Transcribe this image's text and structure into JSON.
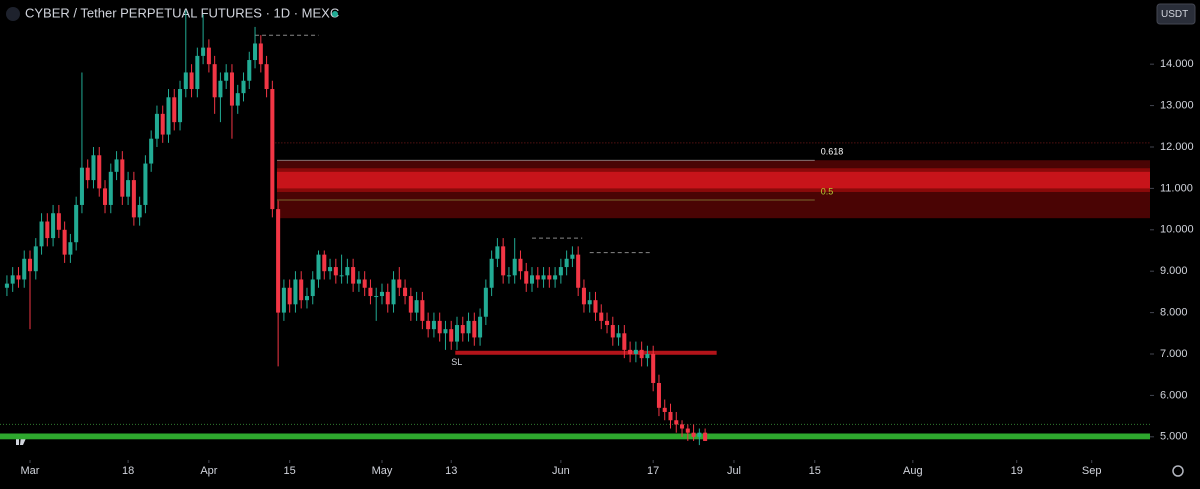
{
  "chart_data": {
    "type": "candlestick",
    "title": "CYBER / Tether PERPETUAL FUTURES · 1D · MEXC",
    "currency": "USDT",
    "up_color": "#22ab94",
    "down_color": "#f23645",
    "xlim": [
      -5.2,
      194.1
    ],
    "ylim": [
      4.44,
      15.55
    ],
    "xticks": [
      {
        "value": 0,
        "label": "Mar"
      },
      {
        "value": 17,
        "label": "18"
      },
      {
        "value": 31,
        "label": "Apr"
      },
      {
        "value": 45,
        "label": "15"
      },
      {
        "value": 61,
        "label": "May"
      },
      {
        "value": 73,
        "label": "13"
      },
      {
        "value": 92,
        "label": "Jun"
      },
      {
        "value": 108,
        "label": "17"
      },
      {
        "value": 122,
        "label": "Jul"
      },
      {
        "value": 136,
        "label": "15"
      },
      {
        "value": 153,
        "label": "Aug"
      },
      {
        "value": 171,
        "label": "19"
      },
      {
        "value": 184,
        "label": "Sep"
      }
    ],
    "yticks": [
      {
        "value": 5,
        "label": "5.000"
      },
      {
        "value": 6,
        "label": "6.000"
      },
      {
        "value": 7,
        "label": "7.000"
      },
      {
        "value": 8,
        "label": "8.000"
      },
      {
        "value": 9,
        "label": "9.000"
      },
      {
        "value": 10,
        "label": "10.000"
      },
      {
        "value": 11,
        "label": "11.000"
      },
      {
        "value": 12,
        "label": "12.000"
      },
      {
        "value": 13,
        "label": "13.000"
      },
      {
        "value": 14,
        "label": "14.000"
      }
    ],
    "x": [
      -4,
      -3,
      -2,
      -1,
      0,
      1,
      2,
      3,
      4,
      5,
      6,
      7,
      8,
      9,
      10,
      11,
      12,
      13,
      14,
      15,
      16,
      17,
      18,
      19,
      20,
      21,
      22,
      23,
      24,
      25,
      26,
      27,
      28,
      29,
      30,
      31,
      32,
      33,
      34,
      35,
      36,
      37,
      38,
      39,
      40,
      41,
      42,
      43,
      44,
      45,
      46,
      47,
      48,
      49,
      50,
      51,
      52,
      53,
      54,
      55,
      56,
      57,
      58,
      59,
      60,
      61,
      62,
      63,
      64,
      65,
      66,
      67,
      68,
      69,
      70,
      71,
      72,
      73,
      74,
      75,
      76,
      77,
      78,
      79,
      80,
      81,
      82,
      83,
      84,
      85,
      86,
      87,
      88,
      89,
      90,
      91,
      92,
      93,
      94,
      95,
      96,
      97,
      98,
      99,
      100,
      101,
      102,
      103,
      104,
      105,
      106,
      107,
      108,
      109,
      110,
      111,
      112,
      113,
      114,
      115,
      116,
      117
    ],
    "open": [
      8.6,
      8.7,
      8.9,
      8.8,
      9.3,
      9.0,
      9.6,
      10.2,
      9.8,
      10.4,
      10.0,
      9.4,
      9.7,
      10.6,
      11.5,
      11.2,
      11.8,
      11.0,
      10.6,
      11.4,
      11.7,
      10.8,
      11.2,
      10.3,
      10.6,
      11.6,
      12.2,
      12.8,
      12.3,
      13.2,
      12.6,
      13.4,
      13.8,
      13.4,
      14.2,
      14.4,
      14.0,
      13.2,
      13.6,
      13.8,
      13.0,
      13.3,
      13.6,
      14.1,
      14.5,
      14.0,
      13.4,
      10.5,
      8.0,
      8.6,
      8.2,
      8.8,
      8.3,
      8.4,
      8.8,
      9.4,
      9.0,
      9.1,
      8.9,
      8.9,
      9.1,
      8.7,
      8.8,
      8.6,
      8.4,
      8.4,
      8.5,
      8.2,
      8.8,
      8.6,
      8.4,
      8.0,
      8.3,
      7.8,
      7.6,
      7.8,
      7.5,
      7.6,
      7.3,
      7.7,
      7.5,
      7.8,
      7.4,
      7.9,
      8.6,
      9.3,
      9.6,
      8.9,
      8.9,
      9.3,
      9.0,
      8.7,
      8.9,
      8.8,
      8.9,
      8.8,
      8.9,
      9.1,
      9.3,
      9.4,
      8.6,
      8.2,
      8.3,
      8.0,
      7.8,
      7.7,
      7.4,
      7.5,
      7.1,
      7.0,
      7.1,
      6.9,
      7.0,
      6.3,
      5.7,
      5.6,
      5.4,
      5.3,
      5.2,
      5.1,
      5.0,
      5.1
    ],
    "high": [
      8.9,
      9.1,
      9.1,
      9.5,
      9.5,
      9.8,
      10.4,
      10.4,
      10.6,
      10.6,
      10.2,
      9.9,
      10.8,
      13.8,
      11.7,
      12.0,
      12.0,
      11.2,
      11.6,
      11.9,
      11.9,
      11.4,
      11.4,
      10.8,
      11.8,
      12.4,
      13.0,
      13.0,
      13.4,
      13.4,
      13.6,
      15.3,
      14.0,
      14.4,
      15.2,
      14.6,
      14.2,
      13.8,
      14.0,
      14.0,
      13.5,
      13.8,
      14.3,
      14.9,
      14.7,
      14.2,
      13.6,
      10.7,
      8.8,
      8.8,
      9.0,
      9.0,
      8.6,
      9.0,
      9.5,
      9.5,
      9.3,
      9.3,
      9.4,
      9.3,
      9.3,
      9.0,
      9.0,
      8.8,
      8.6,
      8.7,
      8.7,
      9.0,
      9.1,
      8.8,
      8.6,
      8.5,
      8.5,
      8.0,
      8.0,
      8.0,
      7.8,
      7.8,
      7.9,
      7.9,
      8.0,
      8.0,
      8.1,
      8.8,
      9.5,
      9.8,
      9.8,
      9.1,
      9.8,
      9.5,
      9.2,
      9.1,
      9.1,
      9.1,
      9.1,
      9.1,
      9.3,
      9.5,
      9.6,
      9.6,
      8.8,
      8.5,
      8.5,
      8.2,
      8.0,
      7.9,
      7.7,
      7.7,
      7.3,
      7.3,
      7.3,
      7.2,
      7.2,
      6.5,
      5.9,
      5.8,
      5.6,
      5.4,
      5.3,
      5.3,
      5.2,
      5.2
    ],
    "low": [
      8.4,
      8.5,
      8.6,
      8.6,
      7.6,
      8.8,
      9.4,
      9.6,
      9.6,
      9.8,
      9.2,
      9.2,
      9.5,
      10.4,
      11.0,
      11.0,
      10.8,
      10.4,
      10.4,
      11.2,
      10.6,
      10.6,
      10.1,
      10.1,
      10.4,
      11.4,
      12.0,
      12.1,
      12.1,
      12.4,
      12.4,
      13.2,
      13.2,
      13.2,
      14.0,
      13.8,
      12.8,
      12.6,
      13.4,
      12.2,
      12.8,
      13.1,
      13.4,
      13.9,
      13.8,
      13.2,
      10.3,
      6.7,
      7.8,
      8.0,
      8.0,
      8.1,
      8.1,
      8.2,
      8.6,
      8.8,
      8.8,
      8.7,
      8.7,
      8.7,
      8.5,
      8.5,
      8.4,
      8.2,
      7.8,
      8.2,
      8.0,
      8.0,
      8.4,
      8.2,
      7.8,
      7.8,
      7.6,
      7.4,
      7.4,
      7.3,
      7.1,
      7.1,
      7.1,
      7.3,
      7.3,
      7.2,
      7.2,
      7.7,
      8.4,
      9.1,
      8.7,
      8.7,
      8.7,
      8.8,
      8.5,
      8.5,
      8.6,
      8.6,
      8.6,
      8.6,
      8.7,
      8.9,
      9.1,
      8.4,
      8.0,
      8.0,
      7.8,
      7.6,
      7.5,
      7.2,
      7.2,
      6.9,
      6.8,
      6.8,
      6.7,
      6.7,
      6.1,
      5.5,
      5.4,
      5.2,
      5.1,
      5.0,
      4.9,
      4.9,
      4.8,
      4.9
    ],
    "close": [
      8.7,
      8.9,
      8.8,
      9.3,
      9.0,
      9.6,
      10.2,
      9.8,
      10.4,
      10.0,
      9.4,
      9.7,
      10.6,
      11.5,
      11.2,
      11.8,
      11.0,
      10.6,
      11.4,
      11.7,
      10.8,
      11.2,
      10.3,
      10.6,
      11.6,
      12.2,
      12.8,
      12.3,
      13.2,
      12.6,
      13.4,
      13.8,
      13.4,
      14.2,
      14.4,
      14.0,
      13.2,
      13.6,
      13.8,
      13.0,
      13.3,
      13.6,
      14.1,
      14.5,
      14.0,
      13.4,
      10.5,
      8.0,
      8.6,
      8.2,
      8.8,
      8.3,
      8.4,
      8.8,
      9.4,
      9.0,
      9.1,
      8.9,
      8.9,
      9.1,
      8.7,
      8.8,
      8.6,
      8.4,
      8.4,
      8.5,
      8.2,
      8.8,
      8.6,
      8.4,
      8.0,
      8.3,
      7.8,
      7.6,
      7.8,
      7.5,
      7.6,
      7.3,
      7.7,
      7.5,
      7.8,
      7.4,
      7.9,
      8.6,
      9.3,
      9.6,
      8.9,
      8.9,
      9.3,
      9.0,
      8.7,
      8.9,
      8.8,
      8.9,
      8.8,
      8.9,
      9.1,
      9.3,
      9.4,
      8.6,
      8.2,
      8.3,
      8.0,
      7.8,
      7.7,
      7.4,
      7.5,
      7.1,
      7.0,
      7.1,
      6.9,
      7.0,
      6.3,
      5.7,
      5.6,
      5.4,
      5.3,
      5.2,
      5.1,
      5.0,
      5.1,
      4.9
    ],
    "zone": {
      "x": [
        42.8,
        194.1
      ],
      "range": [
        10.28,
        11.68
      ],
      "core": [
        11.0,
        11.4
      ]
    },
    "levels": [
      {
        "label": "0.618",
        "value": 11.68,
        "x": [
          42.8,
          136
        ]
      },
      {
        "label": "0.5",
        "value": 10.72,
        "x": [
          42.8,
          136
        ]
      }
    ],
    "stop_loss": {
      "label": "SL",
      "value": 7.03,
      "x": [
        73.7,
        119
      ]
    },
    "support_band": [
      4.94,
      5.08
    ],
    "dotted_levels": [
      12.1,
      5.3
    ],
    "prior_highs": [
      {
        "value": 14.7,
        "x": [
          39,
          50
        ]
      },
      {
        "value": 9.8,
        "x": [
          87,
          95.7
        ]
      },
      {
        "value": 9.45,
        "x": [
          97,
          107.8
        ]
      }
    ]
  }
}
